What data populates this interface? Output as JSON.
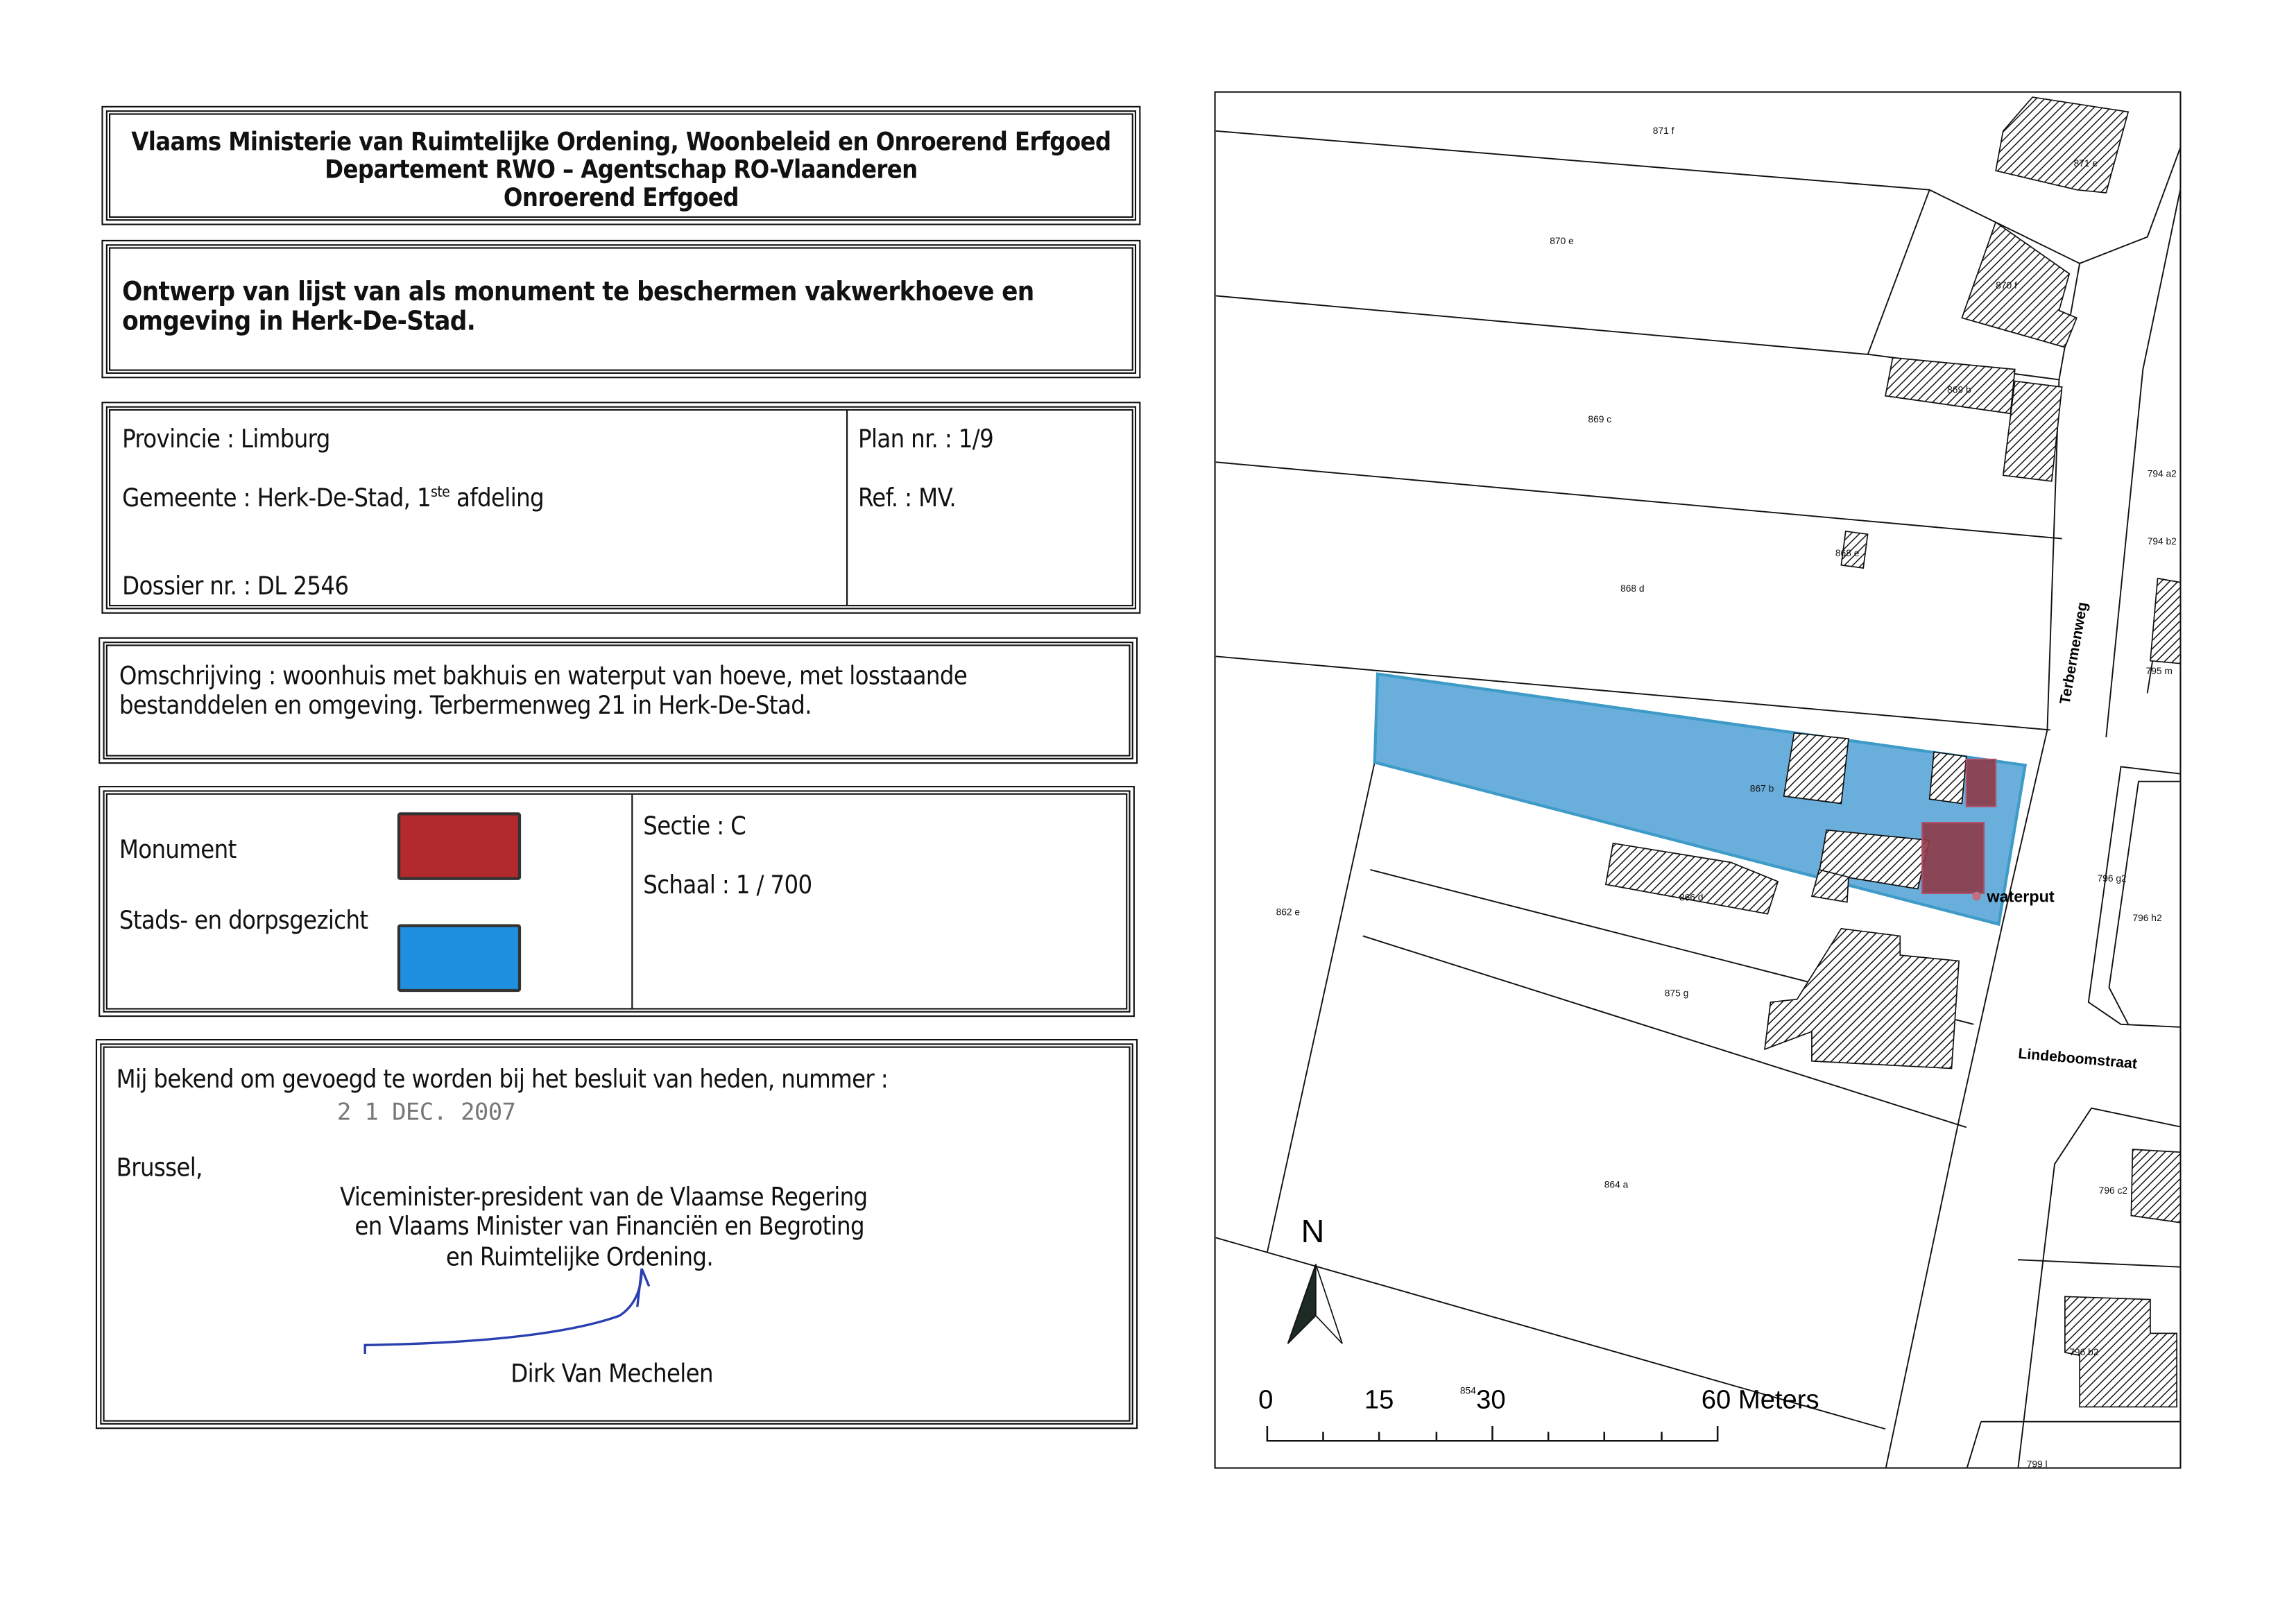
{
  "header": {
    "line1": "Vlaams Ministerie van Ruimtelijke Ordening, Woonbeleid en Onroerend Erfgoed",
    "line2": "Departement RWO – Agentschap RO-Vlaanderen",
    "line3": "Onroerend Erfgoed"
  },
  "title": {
    "line1": "Ontwerp van lijst van als monument te beschermen vakwerkhoeve en",
    "line2": "omgeving in Herk-De-Stad."
  },
  "info": {
    "provincie": "Provincie : Limburg",
    "gemeente_prefix": "Gemeente : Herk-De-Stad, 1",
    "gemeente_sup": "ste",
    "gemeente_suffix": " afdeling",
    "dossier": "Dossier nr. : DL 2546",
    "plan": "Plan nr. : 1/9",
    "ref": "Ref. : MV."
  },
  "description": {
    "line1": "Omschrijving : woonhuis met bakhuis en waterput van hoeve, met losstaande",
    "line2": "bestanddelen en omgeving. Terbermenweg 21 in Herk-De-Stad."
  },
  "legend": {
    "items": [
      {
        "label": "Monument",
        "color": "#b22a2e"
      },
      {
        "label": "Stads- en dorpsgezicht",
        "color": "#1f8fe0"
      }
    ],
    "sectie": "Sectie : C",
    "schaal": "Schaal : 1 / 700"
  },
  "approval": {
    "line": "Mij bekend om gevoegd te worden bij het besluit van heden, nummer :",
    "date_stamp": "2 1 DEC. 2007",
    "place": "Brussel,",
    "role1": "Viceminister-president van de Vlaamse Regering",
    "role2": "en Vlaams Minister van Financiën en Begroting",
    "role3": "en Ruimtelijke Ordening.",
    "name": "Dirk Van Mechelen",
    "signature_color": "#2a3fb0"
  },
  "map": {
    "parcels": [
      "871 f",
      "871 e",
      "870 e",
      "870 f",
      "869 c",
      "869 b",
      "868 d",
      "868 e",
      "867 b",
      "862 e",
      "866 d",
      "875 g",
      "864 a",
      "854",
      "794 a2",
      "794 b2",
      "795 m",
      "796 g2",
      "796 h2",
      "796 c2",
      "796 b2",
      "799 l"
    ],
    "streets": [
      "Terbermenweg",
      "Lindeboomstraat"
    ],
    "waterput_label": "waterput",
    "north_label": "N",
    "scale_labels": [
      "0",
      "15",
      "30",
      "60 Meters"
    ],
    "colors": {
      "protected_area": "#5aa6d8",
      "monument": "#9a3a45"
    }
  }
}
